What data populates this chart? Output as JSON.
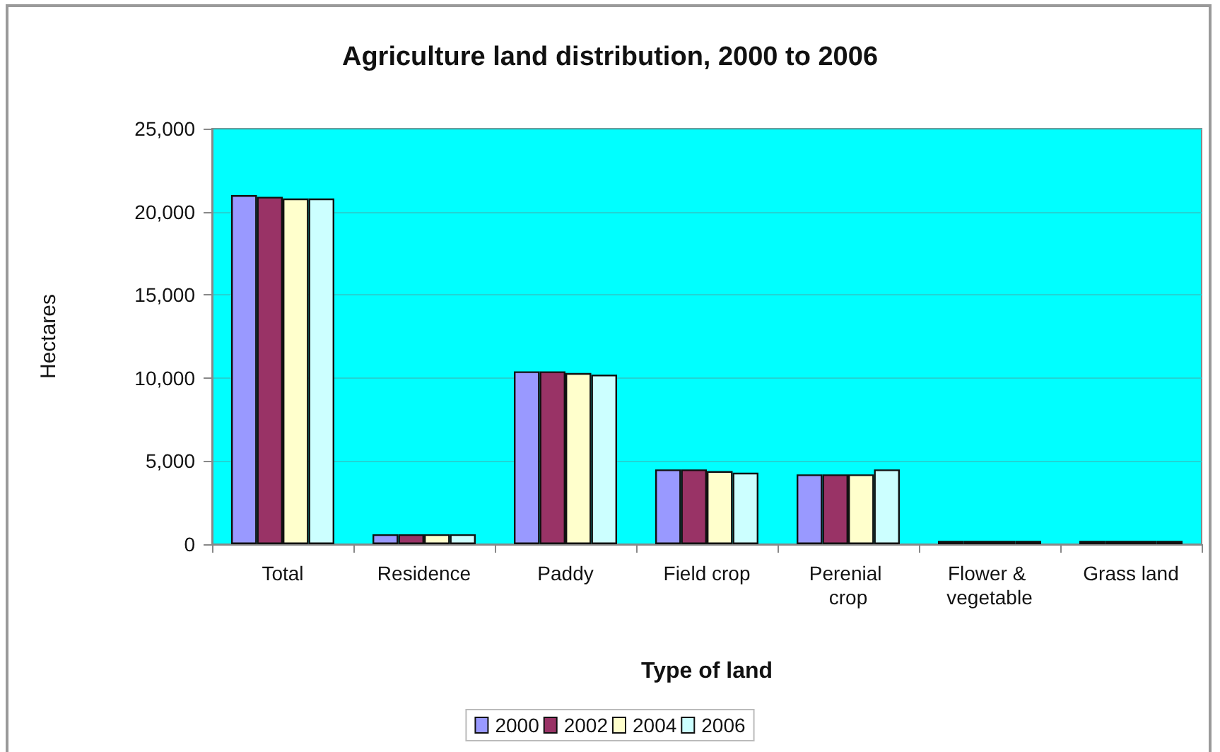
{
  "chart_data": {
    "type": "bar",
    "title": "Agriculture land distribution, 2000 to 2006",
    "xlabel": "Type of land",
    "ylabel": "Hectares",
    "categories": [
      "Total",
      "Residence",
      "Paddy",
      "Field crop",
      "Perenial crop",
      "Flower & vegetable",
      "Grass land"
    ],
    "series": [
      {
        "name": "2000",
        "color": "#9999ff",
        "values": [
          21000,
          600,
          10400,
          4500,
          4200,
          200,
          200
        ]
      },
      {
        "name": "2002",
        "color": "#993366",
        "values": [
          20900,
          600,
          10400,
          4500,
          4200,
          200,
          200
        ]
      },
      {
        "name": "2004",
        "color": "#ffffcc",
        "values": [
          20800,
          600,
          10300,
          4400,
          4200,
          200,
          200
        ]
      },
      {
        "name": "2006",
        "color": "#ccffff",
        "values": [
          20800,
          600,
          10200,
          4300,
          4500,
          200,
          200
        ]
      }
    ],
    "ylim": [
      0,
      25000
    ],
    "yticks": [
      {
        "value": 0,
        "label": "0"
      },
      {
        "value": 5000,
        "label": "5,000"
      },
      {
        "value": 10000,
        "label": "10,000"
      },
      {
        "value": 15000,
        "label": "15,000"
      },
      {
        "value": 20000,
        "label": "20,000"
      },
      {
        "value": 25000,
        "label": "25,000"
      }
    ],
    "grid": "y",
    "legend": "bottom"
  }
}
